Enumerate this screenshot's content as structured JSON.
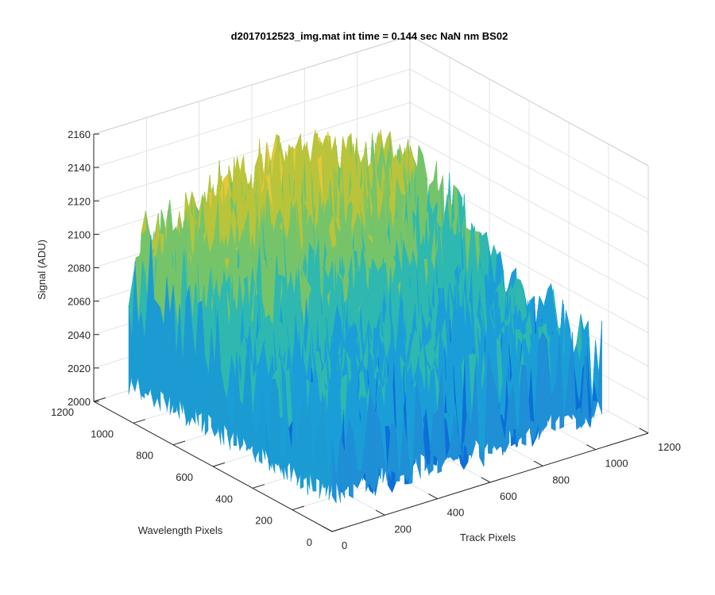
{
  "chart_data": {
    "type": "surface",
    "title": "d2017012523_img.mat int time = 0.144 sec  NaN nm BS02",
    "xlabel": "Track Pixels",
    "ylabel": "Wavelength Pixels",
    "zlabel": "Signal (ADU)",
    "xlim": [
      0,
      1200
    ],
    "ylim": [
      0,
      1200
    ],
    "zlim": [
      2000,
      2160
    ],
    "xticks": [
      "0",
      "200",
      "400",
      "600",
      "800",
      "1000",
      "1200"
    ],
    "yticks": [
      "0",
      "200",
      "400",
      "600",
      "800",
      "1000",
      "1200"
    ],
    "zticks": [
      "2000",
      "2020",
      "2040",
      "2060",
      "2080",
      "2100",
      "2120",
      "2140",
      "2160"
    ],
    "grid": true,
    "colormap": "parula",
    "colors": [
      "#0c6fd8",
      "#1b9ed8",
      "#2fb8b0",
      "#76c46a",
      "#b9c43a",
      "#e2c83a"
    ],
    "surface_summary": {
      "x_extent": [
        0,
        1024
      ],
      "y_extent": [
        0,
        1024
      ],
      "baseline_signal": 2045,
      "peak_signal": 2155,
      "noise_amplitude": 35,
      "bright_region": "high wavelength pixels (upper back quadrant)"
    }
  }
}
